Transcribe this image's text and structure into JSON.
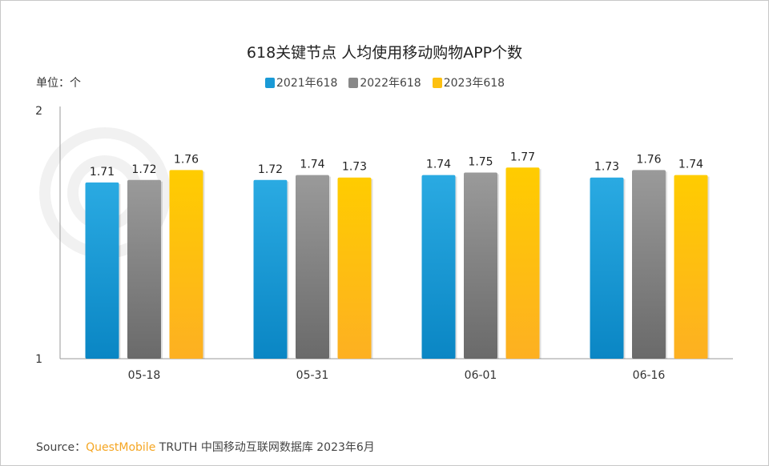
{
  "title": "618关键节点 人均使用移动购物APP个数",
  "unit": "单位：个",
  "source": {
    "prefix": "Source：",
    "brand": "QuestMobile",
    "text": "TRUTH 中国移动互联网数据库 2023年6月"
  },
  "chart_data": {
    "type": "bar",
    "title": "618关键节点 人均使用移动购物APP个数",
    "categories": [
      "05-18",
      "05-31",
      "06-01",
      "06-16"
    ],
    "series": [
      {
        "name": "2021年618",
        "values": [
          1.71,
          1.72,
          1.74,
          1.73
        ],
        "color": "#1a9ad6"
      },
      {
        "name": "2022年618",
        "values": [
          1.72,
          1.74,
          1.75,
          1.76
        ],
        "color": "#888888"
      },
      {
        "name": "2023年618",
        "values": [
          1.76,
          1.73,
          1.77,
          1.74
        ],
        "color": "#fdc010"
      }
    ],
    "ylim": [
      1,
      2
    ],
    "yticks": [
      "1",
      "2"
    ],
    "legend": "top",
    "grid": false
  }
}
